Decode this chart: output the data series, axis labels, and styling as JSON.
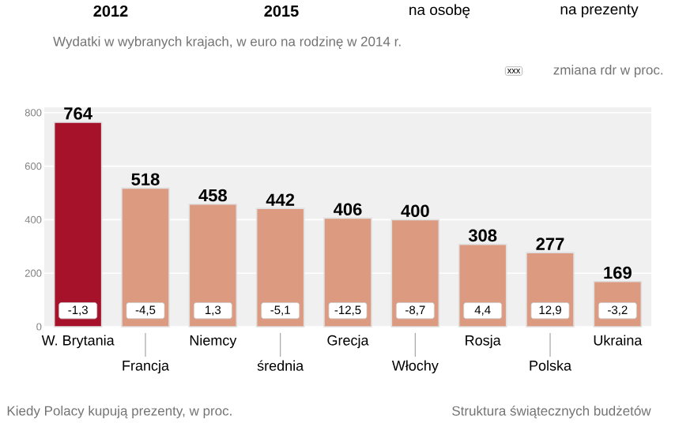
{
  "chart_data": {
    "type": "bar",
    "title": "Wydatki w wybranych krajach, w euro na rodzinę w 2014 r.",
    "categories": [
      "W. Brytania",
      "Francja",
      "Niemcy",
      "średnia",
      "Grecja",
      "Włochy",
      "Rosja",
      "Polska",
      "Ukraina"
    ],
    "values": [
      764,
      518,
      458,
      442,
      406,
      400,
      308,
      277,
      169
    ],
    "colors": [
      "#a5122a",
      "#dc9a80",
      "#dc9a80",
      "#dc9a80",
      "#dc9a80",
      "#dc9a80",
      "#dc9a80",
      "#dc9a80",
      "#dc9a80"
    ],
    "ylim": [
      0,
      820
    ],
    "yticks": [
      0,
      200,
      400,
      600,
      800
    ],
    "grid": "y",
    "data_labels": true,
    "annotations": [
      "2012",
      "2015",
      "na osobę",
      "na prezenty",
      "xxx",
      "zmiana rdr w proc.",
      "Kiedy Polacy kupują prezenty, w proc.",
      "Struktura świątecznych budżetów",
      {
        "text": "-1,3",
        "x": "W. Brytania",
        "y": 60
      },
      {
        "text": "-4,5",
        "x": "Francja",
        "y": 60
      },
      {
        "text": "1,3",
        "x": "Niemcy",
        "y": 60
      },
      {
        "text": "-5,1",
        "x": "średnia",
        "y": 60
      },
      {
        "text": "-12,5",
        "x": "Grecja",
        "y": 60
      },
      {
        "text": "-8,7",
        "x": "Włochy",
        "y": 60
      },
      {
        "text": "4,4",
        "x": "Rosja",
        "y": 60
      },
      {
        "text": "12,9",
        "x": "Polska",
        "y": 60
      },
      {
        "text": "-3,2",
        "x": "Ukraina",
        "y": 60
      }
    ]
  }
}
